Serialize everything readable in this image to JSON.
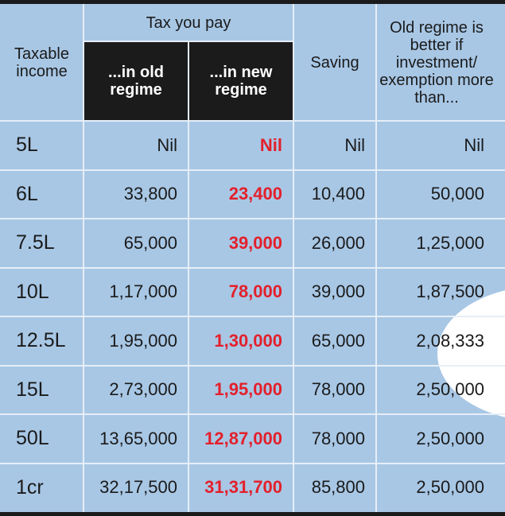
{
  "header": {
    "income": "Taxable income",
    "tax_you_pay": "Tax you pay",
    "old": "...in old regime",
    "new": "...in new regime",
    "saving": "Saving",
    "better_if": "Old regime is better if investment/ exemption more than..."
  },
  "table": {
    "rows": [
      [
        "5L",
        "Nil",
        "Nil",
        "Nil",
        "Nil"
      ],
      [
        "6L",
        "33,800",
        "23,400",
        "10,400",
        "50,000"
      ],
      [
        "7.5L",
        "65,000",
        "39,000",
        "26,000",
        "1,25,000"
      ],
      [
        "10L",
        "1,17,000",
        "78,000",
        "39,000",
        "1,87,500"
      ],
      [
        "12.5L",
        "1,95,000",
        "1,30,000",
        "65,000",
        "2,08,333"
      ],
      [
        "15L",
        "2,73,000",
        "1,95,000",
        "78,000",
        "2,50,000"
      ],
      [
        "50L",
        "13,65,000",
        "12,87,000",
        "78,000",
        "2,50,000"
      ],
      [
        "1cr",
        "32,17,500",
        "31,31,700",
        "85,800",
        "2,50,000"
      ]
    ]
  }
}
